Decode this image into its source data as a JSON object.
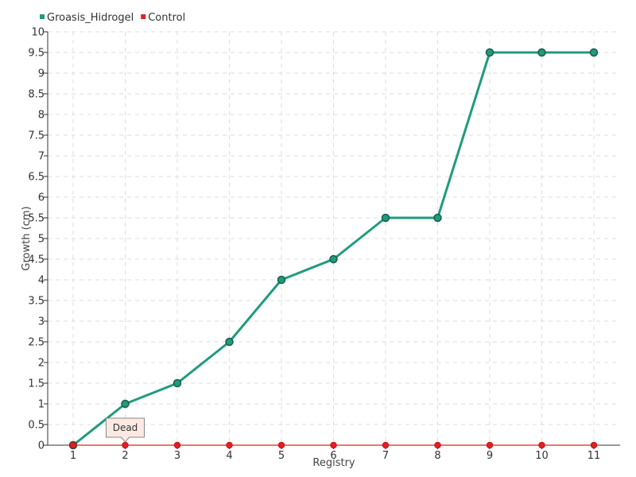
{
  "chart_data": {
    "type": "line",
    "xlabel": "Registry",
    "ylabel": "Growth (cm)",
    "categories": [
      "1",
      "2",
      "3",
      "4",
      "5",
      "6",
      "7",
      "8",
      "9",
      "10",
      "11"
    ],
    "ylim": [
      0,
      10
    ],
    "yticks": [
      "0",
      "0.5",
      "1",
      "1.5",
      "2",
      "2.5",
      "3",
      "3.5",
      "4",
      "4.5",
      "5",
      "5.5",
      "6",
      "6.5",
      "7",
      "7.5",
      "8",
      "8.5",
      "9",
      "9.5",
      "10"
    ],
    "grid": true,
    "legend_position": "top-left",
    "series": [
      {
        "name": "Groasis_Hidrogel",
        "color": "#1f9b7d",
        "values": [
          0,
          1,
          1.5,
          2.5,
          4,
          4.5,
          5.5,
          5.5,
          9.5,
          9.5,
          9.5
        ]
      },
      {
        "name": "Control",
        "color": "#e02020",
        "values": [
          0,
          0,
          0,
          0,
          0,
          0,
          0,
          0,
          0,
          0,
          0
        ]
      }
    ],
    "annotations": [
      {
        "text": "Dead",
        "category": "2",
        "series": "Control"
      }
    ]
  }
}
